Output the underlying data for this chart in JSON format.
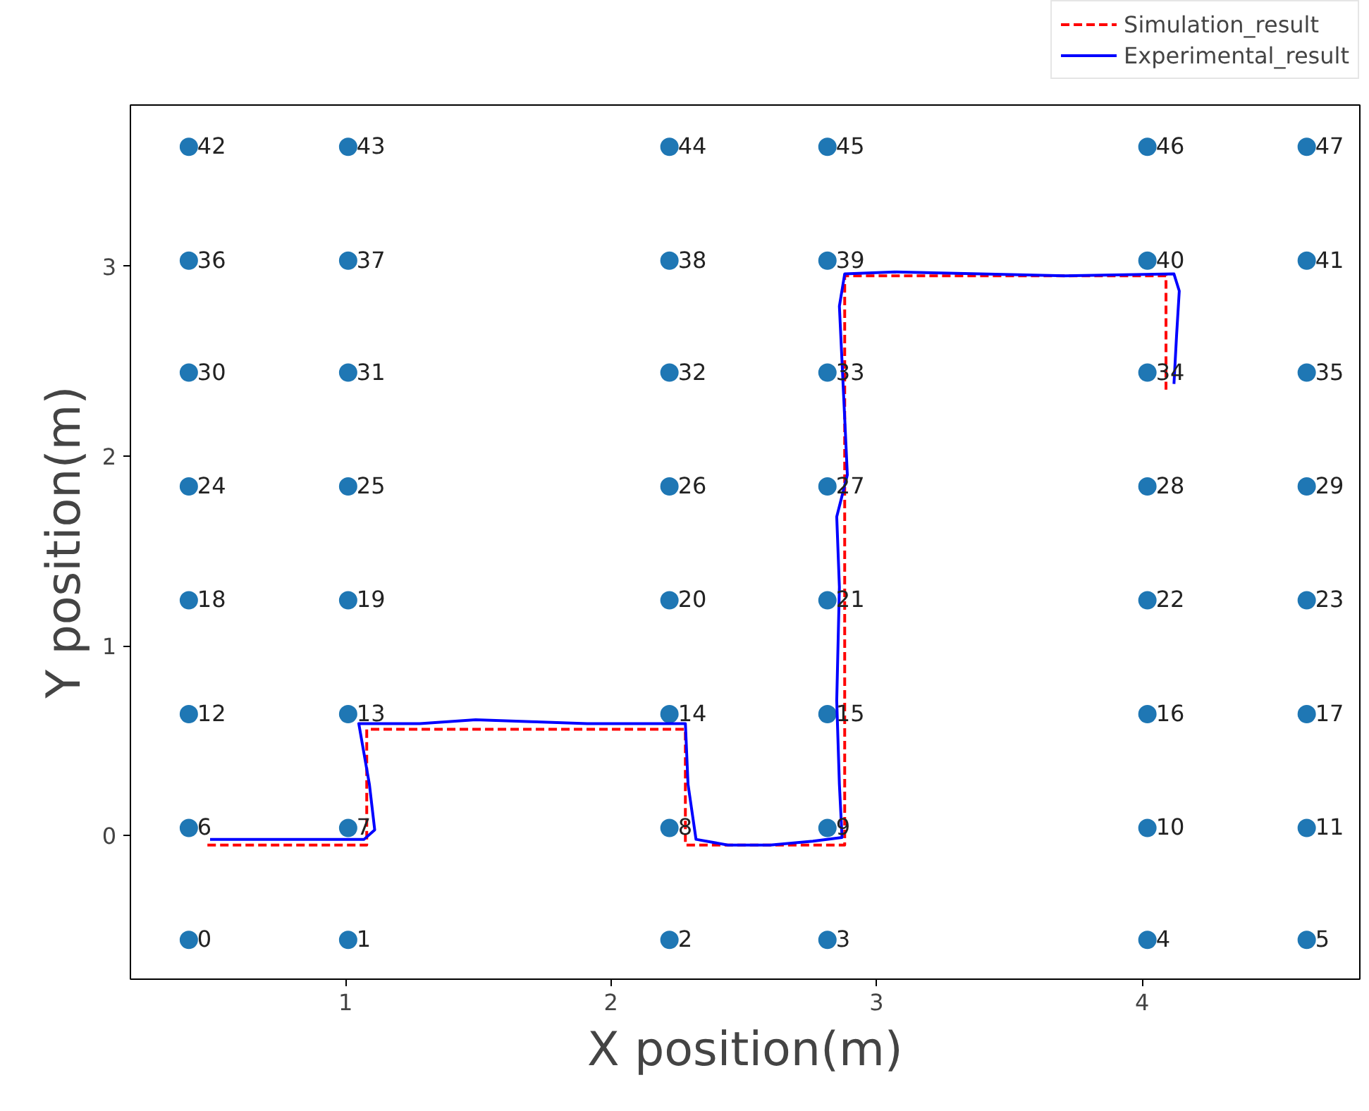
{
  "chart_data": {
    "type": "scatter",
    "xlabel": "X position(m)",
    "ylabel": "Y position(m)",
    "xlim": [
      0.19,
      4.82
    ],
    "ylim": [
      -0.757,
      3.85
    ],
    "xticks": [
      1,
      2,
      3,
      4
    ],
    "yticks": [
      0,
      1,
      2,
      3
    ],
    "grid": false,
    "legend": "top right",
    "series": [
      {
        "type": "scatter",
        "marker": "circle",
        "color": "#1f77b4",
        "x": [
          0.41,
          1.01,
          2.22,
          2.815,
          4.02,
          4.62,
          0.41,
          1.01,
          2.22,
          2.815,
          4.02,
          4.62,
          0.41,
          1.01,
          2.22,
          2.815,
          4.02,
          4.62,
          0.41,
          1.01,
          2.22,
          2.815,
          4.02,
          4.62,
          0.41,
          1.01,
          2.22,
          2.815,
          4.02,
          4.62,
          0.41,
          1.01,
          2.22,
          2.815,
          4.02,
          4.62,
          0.41,
          1.01,
          2.22,
          2.815,
          4.02,
          4.62,
          0.41,
          1.01,
          2.22,
          2.815,
          4.02,
          4.62
        ],
        "values": [
          -0.55,
          -0.55,
          -0.55,
          -0.55,
          -0.55,
          -0.55,
          0.04,
          0.04,
          0.04,
          0.04,
          0.04,
          0.04,
          0.64,
          0.64,
          0.64,
          0.64,
          0.64,
          0.64,
          1.24,
          1.24,
          1.24,
          1.24,
          1.24,
          1.24,
          1.84,
          1.84,
          1.84,
          1.84,
          1.84,
          1.84,
          2.44,
          2.44,
          2.44,
          2.44,
          2.44,
          2.44,
          3.03,
          3.03,
          3.03,
          3.03,
          3.03,
          3.03,
          3.63,
          3.63,
          3.63,
          3.63,
          3.63,
          3.63
        ]
      },
      {
        "type": "line",
        "name": "Simulation_result",
        "color": "#ff0000",
        "line_style": "dashed",
        "marker": "none",
        "x": [
          0.48,
          1.08,
          1.08,
          2.28,
          2.28,
          2.88,
          2.88,
          4.09,
          4.09
        ],
        "values": [
          -0.05,
          -0.05,
          0.56,
          0.56,
          -0.05,
          -0.05,
          2.95,
          2.95,
          2.35
        ]
      },
      {
        "type": "line",
        "name": "Experimental_result",
        "color": "#0000ff",
        "line_style": "solid",
        "marker": "none",
        "x": [
          0.49,
          0.75,
          0.96,
          1.07,
          1.11,
          1.09,
          1.05,
          1.28,
          1.49,
          1.7,
          1.91,
          2.18,
          2.28,
          2.29,
          2.32,
          2.44,
          2.6,
          2.76,
          2.87,
          2.86,
          2.85,
          2.86,
          2.85,
          2.89,
          2.88,
          2.86,
          2.88,
          3.07,
          3.39,
          3.71,
          4.12,
          4.14,
          4.13,
          4.12
        ],
        "values": [
          -0.02,
          -0.02,
          -0.02,
          -0.02,
          0.03,
          0.27,
          0.59,
          0.59,
          0.61,
          0.6,
          0.59,
          0.59,
          0.59,
          0.27,
          -0.02,
          -0.05,
          -0.05,
          -0.03,
          -0.01,
          0.27,
          0.71,
          1.31,
          1.68,
          1.9,
          2.2,
          2.79,
          2.96,
          2.97,
          2.96,
          2.95,
          2.96,
          2.87,
          2.64,
          2.38
        ]
      }
    ],
    "annotations": [
      {
        "text": "0",
        "x": 0.41,
        "y": -0.55
      },
      {
        "text": "1",
        "x": 1.01,
        "y": -0.55
      },
      {
        "text": "2",
        "x": 2.22,
        "y": -0.55
      },
      {
        "text": "3",
        "x": 2.815,
        "y": -0.55
      },
      {
        "text": "4",
        "x": 4.02,
        "y": -0.55
      },
      {
        "text": "5",
        "x": 4.62,
        "y": -0.55
      },
      {
        "text": "6",
        "x": 0.41,
        "y": 0.04
      },
      {
        "text": "7",
        "x": 1.01,
        "y": 0.04
      },
      {
        "text": "8",
        "x": 2.22,
        "y": 0.04
      },
      {
        "text": "9",
        "x": 2.815,
        "y": 0.04
      },
      {
        "text": "10",
        "x": 4.02,
        "y": 0.04
      },
      {
        "text": "11",
        "x": 4.62,
        "y": 0.04
      },
      {
        "text": "12",
        "x": 0.41,
        "y": 0.64
      },
      {
        "text": "13",
        "x": 1.01,
        "y": 0.64
      },
      {
        "text": "14",
        "x": 2.22,
        "y": 0.64
      },
      {
        "text": "15",
        "x": 2.815,
        "y": 0.64
      },
      {
        "text": "16",
        "x": 4.02,
        "y": 0.64
      },
      {
        "text": "17",
        "x": 4.62,
        "y": 0.64
      },
      {
        "text": "18",
        "x": 0.41,
        "y": 1.24
      },
      {
        "text": "19",
        "x": 1.01,
        "y": 1.24
      },
      {
        "text": "20",
        "x": 2.22,
        "y": 1.24
      },
      {
        "text": "21",
        "x": 2.815,
        "y": 1.24
      },
      {
        "text": "22",
        "x": 4.02,
        "y": 1.24
      },
      {
        "text": "23",
        "x": 4.62,
        "y": 1.24
      },
      {
        "text": "24",
        "x": 0.41,
        "y": 1.84
      },
      {
        "text": "25",
        "x": 1.01,
        "y": 1.84
      },
      {
        "text": "26",
        "x": 2.22,
        "y": 1.84
      },
      {
        "text": "27",
        "x": 2.815,
        "y": 1.84
      },
      {
        "text": "28",
        "x": 4.02,
        "y": 1.84
      },
      {
        "text": "29",
        "x": 4.62,
        "y": 1.84
      },
      {
        "text": "30",
        "x": 0.41,
        "y": 2.44
      },
      {
        "text": "31",
        "x": 1.01,
        "y": 2.44
      },
      {
        "text": "32",
        "x": 2.22,
        "y": 2.44
      },
      {
        "text": "33",
        "x": 2.815,
        "y": 2.44
      },
      {
        "text": "34",
        "x": 4.02,
        "y": 2.44
      },
      {
        "text": "35",
        "x": 4.62,
        "y": 2.44
      },
      {
        "text": "36",
        "x": 0.41,
        "y": 3.03
      },
      {
        "text": "37",
        "x": 1.01,
        "y": 3.03
      },
      {
        "text": "38",
        "x": 2.22,
        "y": 3.03
      },
      {
        "text": "39",
        "x": 2.815,
        "y": 3.03
      },
      {
        "text": "40",
        "x": 4.02,
        "y": 3.03
      },
      {
        "text": "41",
        "x": 4.62,
        "y": 3.03
      },
      {
        "text": "42",
        "x": 0.41,
        "y": 3.63
      },
      {
        "text": "43",
        "x": 1.01,
        "y": 3.63
      },
      {
        "text": "44",
        "x": 2.22,
        "y": 3.63
      },
      {
        "text": "45",
        "x": 2.815,
        "y": 3.63
      },
      {
        "text": "46",
        "x": 4.02,
        "y": 3.63
      },
      {
        "text": "47",
        "x": 4.62,
        "y": 3.63
      }
    ]
  }
}
